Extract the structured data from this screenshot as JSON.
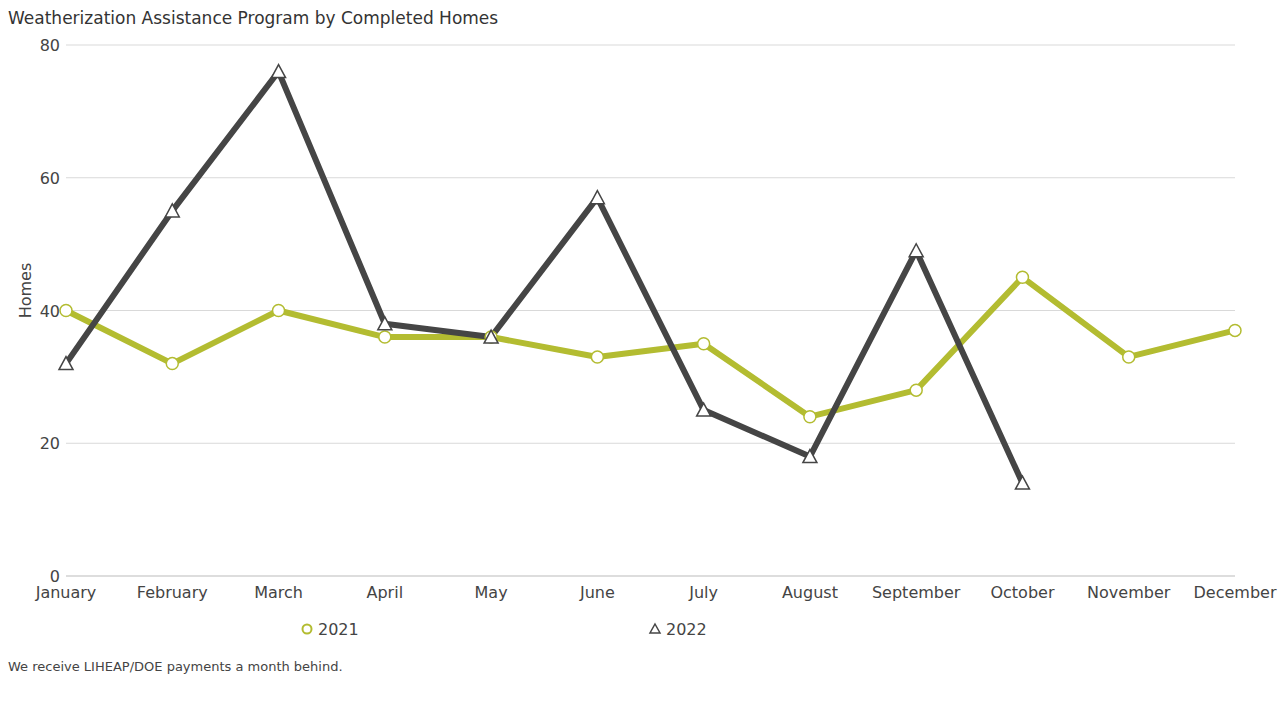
{
  "chart_data": {
    "type": "line",
    "title": "Weatherization Assistance Program by Completed Homes",
    "y_label": "Homes",
    "annotations": [
      "We receive LIHEAP/DOE payments a month behind."
    ],
    "categories": [
      "January",
      "February",
      "March",
      "April",
      "May",
      "June",
      "July",
      "August",
      "September",
      "October",
      "November",
      "December"
    ],
    "series": [
      {
        "name": "2021",
        "color": "#b3bc31",
        "marker": "circle",
        "values": [
          40,
          32,
          40,
          36,
          36,
          33,
          35,
          24,
          28,
          45,
          33,
          37
        ]
      },
      {
        "name": "2022",
        "color": "#454545",
        "marker": "triangle",
        "values": [
          32,
          55,
          76,
          38,
          36,
          57,
          25,
          18,
          49,
          14,
          null,
          null
        ]
      }
    ],
    "ylim": [
      0,
      80
    ],
    "yticks": [
      0,
      20,
      40,
      60,
      80
    ],
    "grid": true,
    "legend": "bottom"
  }
}
